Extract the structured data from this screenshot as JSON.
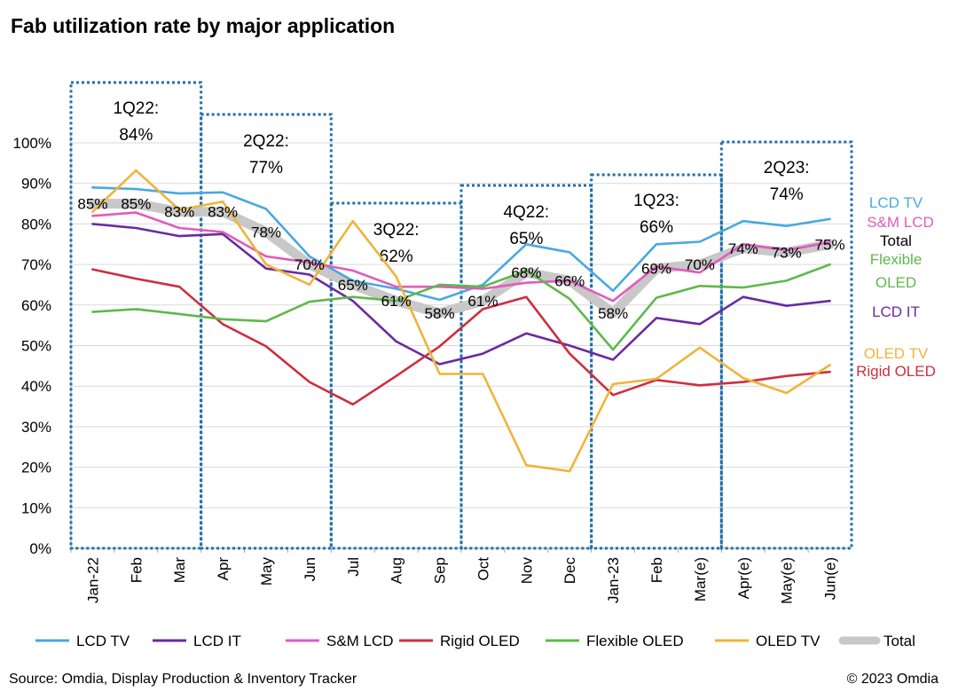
{
  "title": "Fab utilization rate by major application",
  "footer": {
    "source": "Source: Omdia, Display Production & Inventory Tracker",
    "copyright": "© 2023 Omdia"
  },
  "chart_data": {
    "type": "line",
    "title": "Fab utilization rate by major application",
    "categories": [
      "Jan-22",
      "Feb",
      "Mar",
      "Apr",
      "May",
      "Jun",
      "Jul",
      "Aug",
      "Sep",
      "Oct",
      "Nov",
      "Dec",
      "Jan-23",
      "Feb",
      "Mar(e)",
      "Apr(e)",
      "May(e)",
      "Jun(e)"
    ],
    "y_ticks": [
      "0%",
      "10%",
      "20%",
      "30%",
      "40%",
      "50%",
      "60%",
      "70%",
      "80%",
      "90%",
      "100%"
    ],
    "ylim": [
      0,
      100
    ],
    "grid": "horizontal",
    "legend": "bottom",
    "series": [
      {
        "name": "LCD TV",
        "color": "#4aa8e0",
        "end_label": "LCD TV",
        "values": [
          89,
          88.6,
          87.5,
          87.8,
          83.7,
          72,
          66,
          64,
          61.3,
          65,
          75,
          73,
          63.5,
          75,
          75.6,
          80.7,
          79.5,
          81.2
        ]
      },
      {
        "name": "LCD IT",
        "color": "#6a2aa0",
        "end_label": "LCD IT",
        "values": [
          80,
          79,
          77,
          77.5,
          69,
          67.5,
          61,
          51,
          45.4,
          48,
          53,
          50,
          46.5,
          56.8,
          55.3,
          62,
          59.8,
          61
        ]
      },
      {
        "name": "S&M LCD",
        "color": "#e05bbd",
        "end_label": "S&M LCD",
        "values": [
          82,
          82.8,
          79,
          78,
          72,
          70.5,
          68.5,
          64.5,
          64.5,
          64,
          65.5,
          66,
          61,
          69.5,
          68,
          75,
          73.5,
          75.5
        ]
      },
      {
        "name": "Rigid OLED",
        "color": "#cc2f3f",
        "end_label": "Rigid OLED",
        "values": [
          68.8,
          66.5,
          64.5,
          55.3,
          49.8,
          41,
          35.5,
          42.5,
          49.8,
          59,
          62,
          48,
          37.8,
          41.5,
          40.2,
          41,
          42.5,
          43.5
        ]
      },
      {
        "name": "Flexible OLED",
        "color": "#5fb84a",
        "end_label": "Flexible OLED",
        "values": [
          58.3,
          59,
          57.8,
          56.5,
          56,
          60.8,
          62,
          61,
          65,
          64.5,
          68.5,
          61.5,
          49,
          61.8,
          64.7,
          64.3,
          66,
          70
        ]
      },
      {
        "name": "OLED TV",
        "color": "#f0b43a",
        "end_label": "OLED TV",
        "values": [
          83,
          93.2,
          83.5,
          85.5,
          70,
          65,
          80.7,
          67,
          43,
          43,
          20.5,
          19,
          40.5,
          41.8,
          49.5,
          42,
          38.3,
          45.2
        ]
      },
      {
        "name": "Total",
        "color": "#c8c8c8",
        "end_label": "Total",
        "values": [
          85,
          85,
          83,
          83,
          78,
          70,
          65,
          61,
          58,
          61,
          68,
          66,
          58,
          69,
          70,
          74,
          73,
          75
        ],
        "data_labels": [
          "85%",
          "85%",
          "83%",
          "83%",
          "78%",
          "70%",
          "65%",
          "61%",
          "58%",
          "61%",
          "68%",
          "66%",
          "58%",
          "69%",
          "70%",
          "74%",
          "73%",
          "75%"
        ]
      }
    ],
    "annotations": [
      {
        "label": "1Q22:",
        "value": "84%"
      },
      {
        "label": "2Q22:",
        "value": "77%"
      },
      {
        "label": "3Q22:",
        "value": "62%"
      },
      {
        "label": "4Q22:",
        "value": "65%"
      },
      {
        "label": "1Q23:",
        "value": "66%"
      },
      {
        "label": "2Q23:",
        "value": "74%"
      }
    ]
  }
}
